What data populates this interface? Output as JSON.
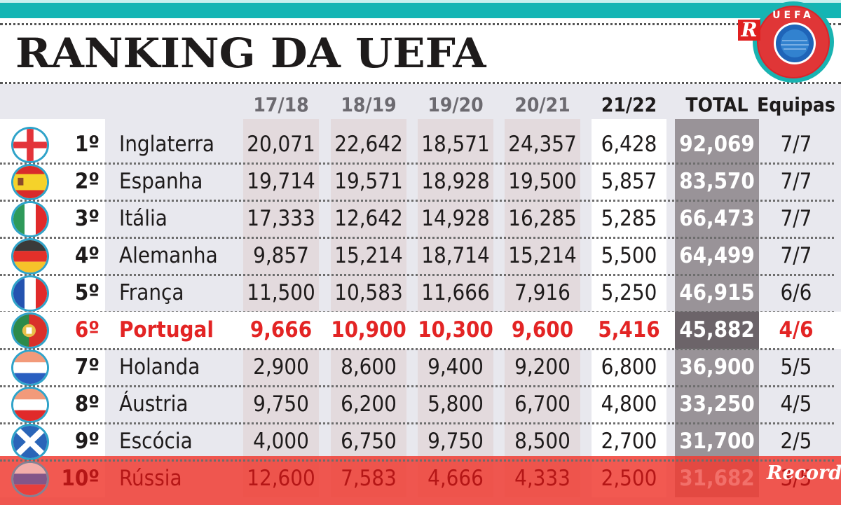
{
  "title": "RANKING DA UEFA",
  "logos": {
    "brand_badge": "R",
    "uefa_label": "UEFA",
    "publisher": "Record"
  },
  "colors": {
    "accent_teal": "#14b5b4",
    "highlight_red": "#e32424",
    "relegation_red": "#f03c32",
    "total_column": "#999398"
  },
  "chart_data": {
    "type": "table",
    "title": "RANKING DA UEFA",
    "columns": [
      "",
      "",
      "",
      "17/18",
      "18/19",
      "19/20",
      "20/21",
      "21/22",
      "TOTAL",
      "Equipas"
    ],
    "rows": [
      {
        "flag": "england-flag-icon",
        "rank": "1º",
        "country": "Inglaterra",
        "s1718": "20,071",
        "s1819": "22,642",
        "s1920": "18,571",
        "s2021": "24,357",
        "s2122": "6,428",
        "total": "92,069",
        "equipas": "7/7"
      },
      {
        "flag": "spain-flag-icon",
        "rank": "2º",
        "country": "Espanha",
        "s1718": "19,714",
        "s1819": "19,571",
        "s1920": "18,928",
        "s2021": "19,500",
        "s2122": "5,857",
        "total": "83,570",
        "equipas": "7/7"
      },
      {
        "flag": "italy-flag-icon",
        "rank": "3º",
        "country": "Itália",
        "s1718": "17,333",
        "s1819": "12,642",
        "s1920": "14,928",
        "s2021": "16,285",
        "s2122": "5,285",
        "total": "66,473",
        "equipas": "7/7"
      },
      {
        "flag": "germany-flag-icon",
        "rank": "4º",
        "country": "Alemanha",
        "s1718": "9,857",
        "s1819": "15,214",
        "s1920": "18,714",
        "s2021": "15,214",
        "s2122": "5,500",
        "total": "64,499",
        "equipas": "7/7"
      },
      {
        "flag": "france-flag-icon",
        "rank": "5º",
        "country": "França",
        "s1718": "11,500",
        "s1819": "10,583",
        "s1920": "11,666",
        "s2021": "7,916",
        "s2122": "5,250",
        "total": "46,915",
        "equipas": "6/6"
      },
      {
        "flag": "portugal-flag-icon",
        "rank": "6º",
        "country": "Portugal",
        "s1718": "9,666",
        "s1819": "10,900",
        "s1920": "10,300",
        "s2021": "9,600",
        "s2122": "5,416",
        "total": "45,882",
        "equipas": "4/6",
        "highlight": true
      },
      {
        "flag": "netherlands-flag-icon",
        "rank": "7º",
        "country": "Holanda",
        "s1718": "2,900",
        "s1819": "8,600",
        "s1920": "9,400",
        "s2021": "9,200",
        "s2122": "6,800",
        "total": "36,900",
        "equipas": "5/5"
      },
      {
        "flag": "austria-flag-icon",
        "rank": "8º",
        "country": "Áustria",
        "s1718": "9,750",
        "s1819": "6,200",
        "s1920": "5,800",
        "s2021": "6,700",
        "s2122": "4,800",
        "total": "33,250",
        "equipas": "4/5"
      },
      {
        "flag": "scotland-flag-icon",
        "rank": "9º",
        "country": "Escócia",
        "s1718": "4,000",
        "s1819": "6,750",
        "s1920": "9,750",
        "s2021": "8,500",
        "s2122": "2,700",
        "total": "31,700",
        "equipas": "2/5"
      },
      {
        "flag": "russia-flag-icon",
        "rank": "10º",
        "country": "Rússia",
        "s1718": "12,600",
        "s1819": "7,583",
        "s1920": "4,666",
        "s2021": "4,333",
        "s2122": "2,500",
        "total": "31,682",
        "equipas": "3/5",
        "relegated": true
      }
    ]
  }
}
